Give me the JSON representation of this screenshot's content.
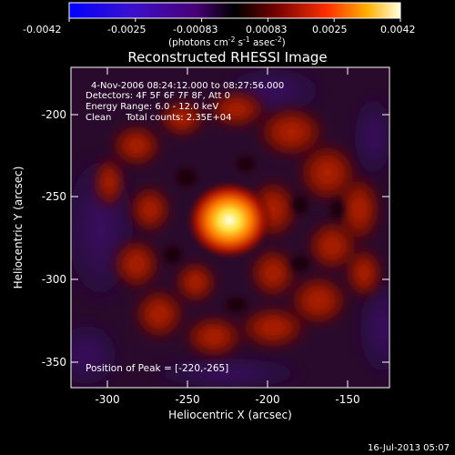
{
  "colorbar": {
    "ticks": [
      "-0.0042",
      "-0.0025",
      "-0.00083",
      "0.00083",
      "0.0025",
      "0.0042"
    ],
    "unit_prefix": "(photons cm",
    "unit_exp1": "-2",
    "unit_mid": " s",
    "unit_exp2": "-1",
    "unit_mid2": " asec",
    "unit_exp3": "-2",
    "unit_suffix": ")"
  },
  "title": "Reconstructed RHESSI Image",
  "info": {
    "time_range": "4-Nov-2006 08:24:12.000 to 08:27:56.000",
    "detectors": "Detectors: 4F 5F 6F 7F 8F, Att 0",
    "energy": "Energy Range: 6.0 - 12.0 keV",
    "clean": "Clean     Total counts: 2.35E+04"
  },
  "peak_label": "Position of Peak = [-220,-265]",
  "axes": {
    "xlabel": "Heliocentric X (arcsec)",
    "ylabel": "Heliocentric Y (arcsec)",
    "xticks": [
      "-300",
      "-250",
      "-200",
      "-150"
    ],
    "yticks": [
      "-200",
      "-250",
      "-300",
      "-350"
    ]
  },
  "footer_timestamp": "16-Jul-2013 05:07",
  "colors": {
    "background": "#000000",
    "colormap": [
      "#0000ff",
      "#5a00a0",
      "#000000",
      "#8a0000",
      "#ff3a00",
      "#ffaa00",
      "#ffffc0"
    ]
  }
}
